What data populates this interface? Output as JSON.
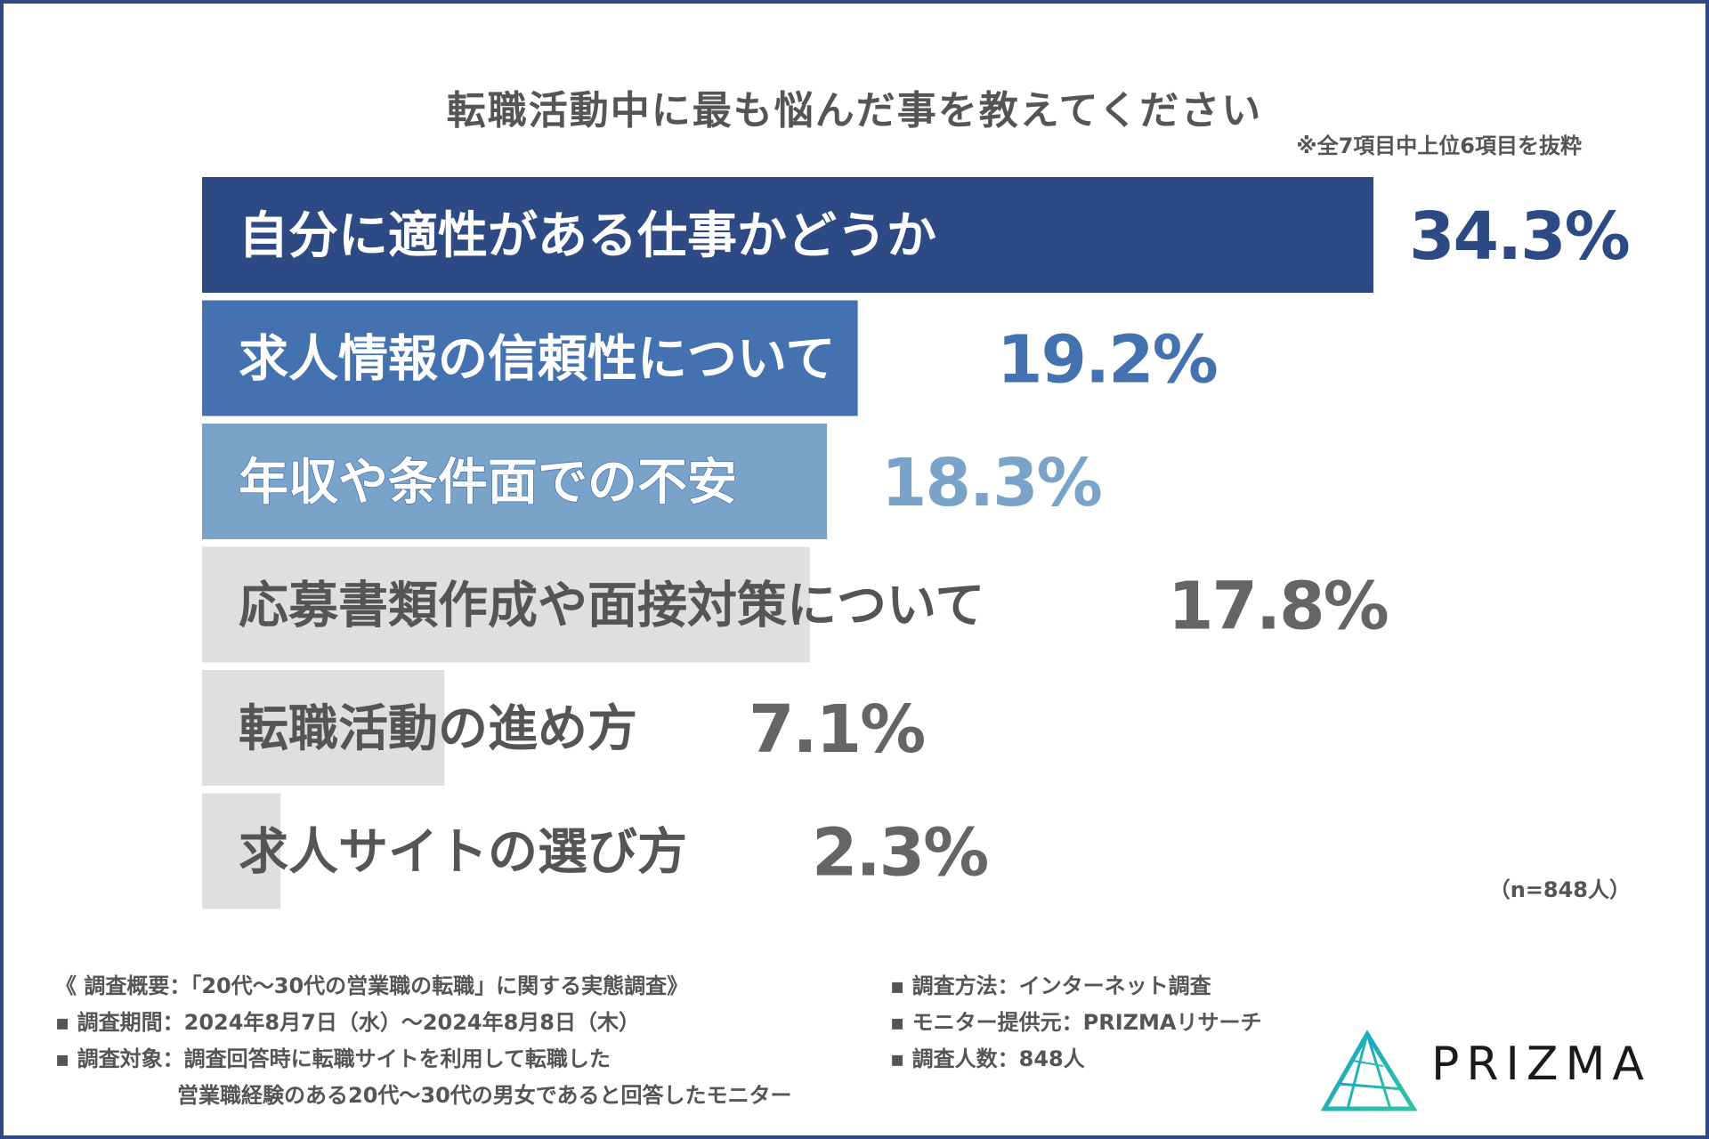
{
  "header": {
    "title": "転職活動中に最も悩んだ事を教えてください",
    "note": "※全7項目中上位6項目を抜粋"
  },
  "colors": {
    "frame": "#2e4a85",
    "bar1": "#2e4a85",
    "bar2": "#4472b0",
    "bar3": "#7aa3c9",
    "bar_gray": "#dfdfdf",
    "text_gray": "#555555",
    "value_gray": "#656565"
  },
  "chart_data": {
    "type": "bar",
    "title": "転職活動中に最も悩んだ事を教えてください",
    "orientation": "horizontal",
    "unit": "%",
    "categories": [
      "自分に適性がある仕事かどうか",
      "求人情報の信頼性について",
      "年収や条件面での不安",
      "応募書類作成や面接対策について",
      "転職活動の進め方",
      "求人サイトの選び方"
    ],
    "values": [
      34.3,
      19.2,
      18.3,
      17.8,
      7.1,
      2.3
    ],
    "value_labels": [
      "34.3%",
      "19.2%",
      "18.3%",
      "17.8%",
      "7.1%",
      "2.3%"
    ],
    "xlim": [
      0,
      34.3
    ],
    "grid": false,
    "legend": "none"
  },
  "sample_size": "（n=848人）",
  "footer": {
    "left": [
      "《 調査概要：「20代～30代の営業職の転職」に関する実態調査》",
      "▪ 調査期間：2024年8月7日（水）～2024年8月8日（木）",
      "▪ 調査対象：調査回答時に転職サイトを利用して転職した",
      "営業職経験のある20代～30代の男女であると回答したモニター"
    ],
    "right": [
      "▪ 調査方法：インターネット調査",
      "▪ モニター提供元：PRIZMAリサーチ",
      "▪ 調査人数：848人"
    ]
  },
  "logo": {
    "text": "PRIZMA"
  }
}
